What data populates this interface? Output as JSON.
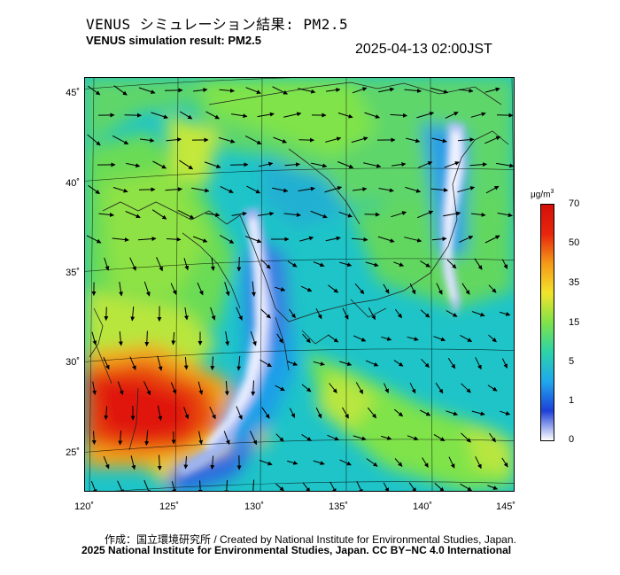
{
  "title_ja": "VENUS シミュレーション結果: PM2.5",
  "title_en": "VENUS simulation result: PM2.5",
  "timestamp": "2025-04-13 02:00JST",
  "lat_labels": [
    "45˚",
    "40˚",
    "35˚",
    "30˚",
    "25˚"
  ],
  "lon_labels": [
    "120˚",
    "125˚",
    "130˚",
    "135˚",
    "140˚",
    "145˚"
  ],
  "colorbar": {
    "unit": "μg/m",
    "unit_sup": "3",
    "labels": [
      "70",
      "50",
      "35",
      "15",
      "5",
      "1",
      "0"
    ],
    "colors": [
      "#ffffff",
      "#1e40d8",
      "#1fa8ee",
      "#2cd3a8",
      "#7fe34a",
      "#f2e32a",
      "#f59a18",
      "#e8250c",
      "#d41008"
    ]
  },
  "credit_line1": "作成：国立環境研究所 / Created by National Institute for Environmental Studies, Japan.",
  "credit_line2": "2025 National Institute for Environmental Studies, Japan. CC BY−NC 4.0 International"
}
